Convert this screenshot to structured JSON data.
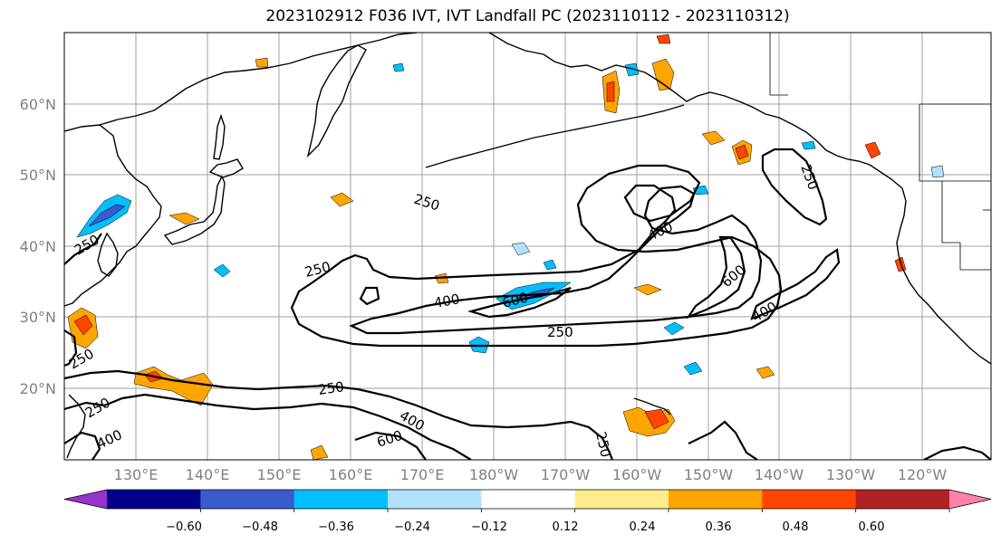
{
  "title": "2023102912 F036 IVT, IVT Landfall PC (2023110112 - 2023110312)",
  "latitude_labels": [
    "60°N",
    "50°N",
    "40°N",
    "30°N",
    "20°N"
  ],
  "longitude_labels": [
    "130°E",
    "140°E",
    "150°E",
    "160°E",
    "170°E",
    "180°W",
    "170°W",
    "160°W",
    "150°W",
    "140°W",
    "130°W",
    "120°W"
  ],
  "contour_labels": [
    "250",
    "250",
    "250",
    "250",
    "400",
    "600",
    "250",
    "400",
    "600",
    "400",
    "250",
    "400",
    "600",
    "250",
    "250",
    "400",
    "250"
  ],
  "colorbar": {
    "tick_labels": [
      "−0.60",
      "−0.48",
      "−0.36",
      "−0.24",
      "−0.12",
      "0.12",
      "0.24",
      "0.36",
      "0.48",
      "0.60"
    ],
    "colors": [
      "#9a32cd",
      "#00008b",
      "#3a5bcc",
      "#00bfff",
      "#b0e2ff",
      "#ffffff",
      "#ffec8b",
      "#ffa500",
      "#ff4500",
      "#b22222",
      "#ff82ab"
    ]
  }
}
